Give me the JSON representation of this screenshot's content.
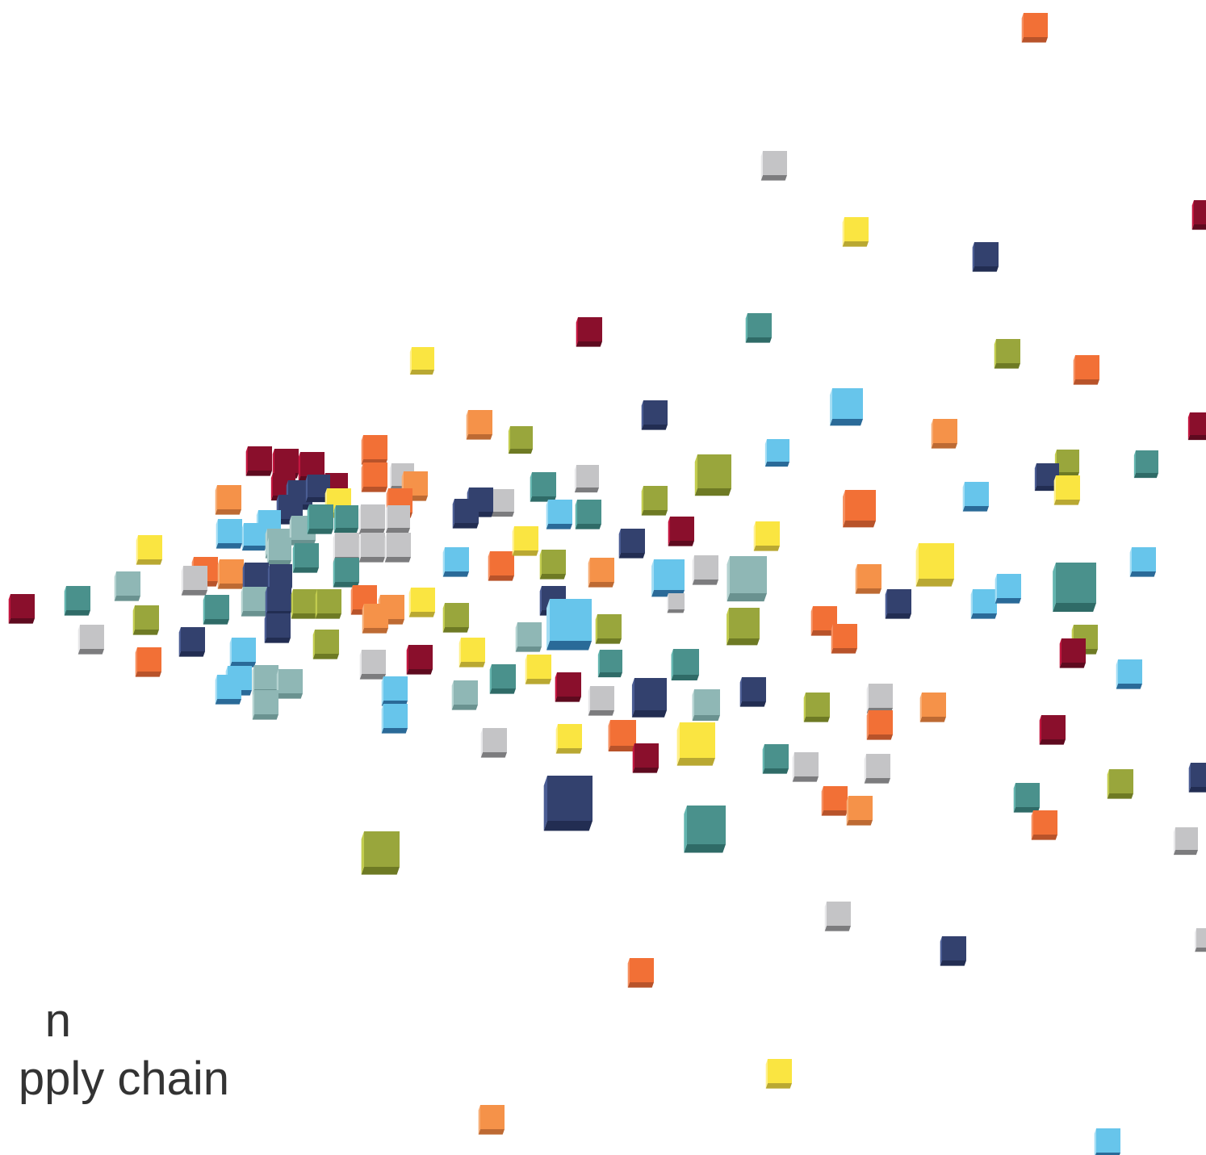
{
  "caption": {
    "line1": "n",
    "line2": "pply chain"
  },
  "palette": {
    "navy": {
      "front": "#33416e",
      "top": "#4b5d94",
      "side": "#222d52"
    },
    "teal": {
      "front": "#4a918c",
      "top": "#64b5af",
      "side": "#2f6b67"
    },
    "light-teal": {
      "front": "#8fb7b5",
      "top": "#b5d3d1",
      "side": "#6a9290"
    },
    "sky": {
      "front": "#67c5eb",
      "top": "#a3ddf4",
      "side": "#2a6a98"
    },
    "olive": {
      "front": "#99a63c",
      "top": "#c2cc4e",
      "side": "#6e7a24"
    },
    "yellow": {
      "front": "#fae541",
      "top": "#fff08a",
      "side": "#b9a832"
    },
    "orange": {
      "front": "#f27036",
      "top": "#f68f5f",
      "side": "#b8532a"
    },
    "light-orange": {
      "front": "#f59249",
      "top": "#f7ad75",
      "side": "#bd6a33"
    },
    "red": {
      "front": "#8a0f2c",
      "top": "#c2163f",
      "side": "#5e0a1f"
    },
    "grey": {
      "front": "#c4c4c6",
      "top": "#e7e7e9",
      "side": "#7c7c7e"
    }
  }
}
